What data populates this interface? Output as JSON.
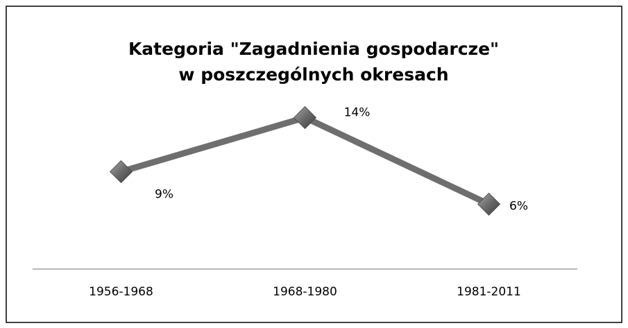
{
  "chart_data": {
    "type": "line",
    "title": [
      "Kategoria \"Zagadnienia gospodarcze\"",
      "w poszczególnych okresach"
    ],
    "categories": [
      "1956-1968",
      "1968-1980",
      "1981-2011"
    ],
    "series": [
      {
        "color": "#6e6e6e",
        "values": [
          9,
          14,
          6
        ],
        "value_labels": [
          "9%",
          "14%",
          "6%"
        ]
      }
    ],
    "ylim": [
      0,
      16
    ]
  }
}
